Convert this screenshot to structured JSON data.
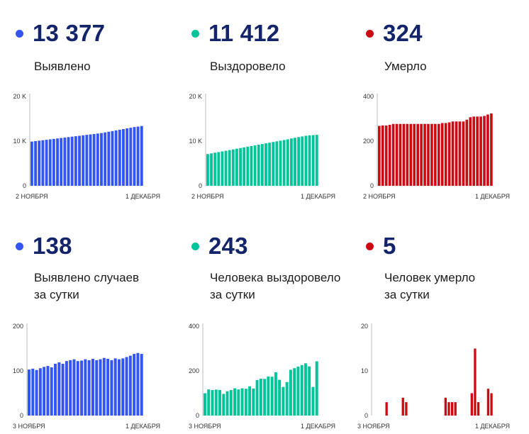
{
  "colors": {
    "blue": "#3355f2",
    "green": "#00c49a",
    "red": "#cc0a14"
  },
  "panels": [
    {
      "value": "13 377",
      "label_lines": [
        "Выявлено"
      ],
      "color": "#3355f2",
      "chart_data": {
        "type": "bar",
        "ylim": [
          0,
          20000
        ],
        "yticks": [
          "20 K",
          "10 K",
          "0"
        ],
        "ytick_values": [
          20000,
          10000,
          0
        ],
        "xlabels": [
          "2 НОЯБРЯ",
          "1 ДЕКАБРЯ"
        ],
        "values": [
          9900,
          10000,
          10100,
          10200,
          10300,
          10400,
          10500,
          10600,
          10700,
          10800,
          10900,
          11000,
          11100,
          11200,
          11300,
          11400,
          11500,
          11600,
          11700,
          11800,
          11950,
          12100,
          12250,
          12400,
          12550,
          12700,
          12850,
          13000,
          13150,
          13250,
          13377
        ]
      }
    },
    {
      "value": "11 412",
      "label_lines": [
        "Выздоровело"
      ],
      "color": "#00c49a",
      "chart_data": {
        "type": "bar",
        "ylim": [
          0,
          20000
        ],
        "yticks": [
          "20 K",
          "10 K",
          "0"
        ],
        "ytick_values": [
          20000,
          10000,
          0
        ],
        "xlabels": [
          "2 НОЯБРЯ",
          "1 ДЕКАБРЯ"
        ],
        "values": [
          7100,
          7250,
          7400,
          7550,
          7700,
          7850,
          8000,
          8150,
          8300,
          8450,
          8600,
          8750,
          8900,
          9050,
          9200,
          9350,
          9500,
          9650,
          9800,
          9950,
          10100,
          10250,
          10400,
          10600,
          10750,
          10900,
          11050,
          11200,
          11300,
          11350,
          11412
        ]
      }
    },
    {
      "value": "324",
      "label_lines": [
        "Умерло"
      ],
      "color": "#cc0a14",
      "chart_data": {
        "type": "bar",
        "ylim": [
          0,
          400
        ],
        "yticks": [
          "400",
          "200",
          "0"
        ],
        "ytick_values": [
          400,
          200,
          0
        ],
        "xlabels": [
          "2 НОЯБРЯ",
          "1 ДЕКАБРЯ"
        ],
        "values": [
          268,
          270,
          270,
          273,
          277,
          277,
          277,
          277,
          277,
          277,
          277,
          277,
          277,
          277,
          277,
          277,
          277,
          277,
          281,
          281,
          284,
          288,
          288,
          288,
          288,
          296,
          307,
          310,
          310,
          310,
          313,
          319,
          324
        ]
      }
    },
    {
      "value": "138",
      "label_lines": [
        "Выявлено случаев",
        "за сутки"
      ],
      "color": "#3355f2",
      "chart_data": {
        "type": "bar",
        "ylim": [
          0,
          200
        ],
        "yticks": [
          "200",
          "100",
          "0"
        ],
        "ytick_values": [
          200,
          100,
          0
        ],
        "xlabels": [
          "3 НОЯБРЯ",
          "1 ДЕКАБРЯ"
        ],
        "values": [
          103,
          105,
          102,
          106,
          109,
          111,
          108,
          116,
          119,
          116,
          122,
          124,
          126,
          122,
          123,
          126,
          124,
          127,
          124,
          126,
          129,
          127,
          124,
          128,
          126,
          128,
          131,
          134,
          138,
          140,
          138
        ]
      }
    },
    {
      "value": "243",
      "label_lines": [
        "Человека выздоровело",
        "за сутки"
      ],
      "color": "#00c49a",
      "chart_data": {
        "type": "bar",
        "ylim": [
          0,
          400
        ],
        "yticks": [
          "400",
          "200",
          "0"
        ],
        "ytick_values": [
          400,
          200,
          0
        ],
        "xlabels": [
          "3 НОЯБРЯ",
          "1 ДЕКАБРЯ"
        ],
        "values": [
          100,
          117,
          114,
          116,
          114,
          97,
          109,
          114,
          122,
          117,
          122,
          120,
          131,
          121,
          159,
          165,
          164,
          175,
          174,
          194,
          160,
          128,
          150,
          205,
          212,
          219,
          226,
          234,
          220,
          128,
          243
        ]
      }
    },
    {
      "value": "5",
      "label_lines": [
        "Человек умерло",
        "за сутки"
      ],
      "color": "#cc0a14",
      "chart_data": {
        "type": "bar",
        "ylim": [
          0,
          20
        ],
        "yticks": [
          "20",
          "10",
          "0"
        ],
        "ytick_values": [
          20,
          10,
          0
        ],
        "xlabels": [
          "3 НОЯБРЯ",
          "1 ДЕКАБРЯ"
        ],
        "values": [
          0,
          0,
          0,
          0,
          3,
          0,
          0,
          0,
          0,
          4,
          3,
          0,
          0,
          0,
          0,
          0,
          0,
          0,
          0,
          0,
          0,
          0,
          4,
          3,
          3,
          3,
          0,
          0,
          0,
          0,
          5,
          15,
          3,
          0,
          0,
          6,
          5
        ]
      }
    }
  ]
}
